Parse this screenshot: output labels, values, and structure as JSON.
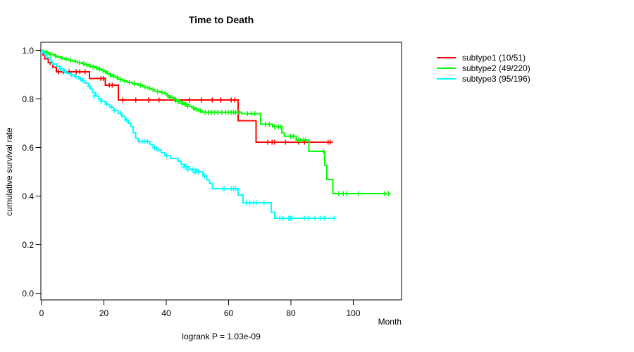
{
  "title": "Time to Death",
  "axes": {
    "y_label": "cumulative survival rate",
    "x_label": "Month"
  },
  "footer": "logrank P = 1.03e-09",
  "legend": {
    "items": [
      {
        "label": "subtype1 (10/51)",
        "color": "#ff0000"
      },
      {
        "label": "subtype2 (49/220)",
        "color": "#00ff00"
      },
      {
        "label": "subtype3 (95/196)",
        "color": "#00ffff"
      }
    ]
  },
  "chart_data": {
    "type": "line",
    "variant": "kaplan-meier-step",
    "title": "Time to Death",
    "xlabel": "Month",
    "ylabel": "cumulative survival rate",
    "xlim": [
      0,
      115.5
    ],
    "ylim": [
      0.0,
      1.0
    ],
    "x_ticks": [
      0,
      20,
      40,
      60,
      80,
      100
    ],
    "y_ticks": [
      "1.0",
      "0.8",
      "0.6",
      "0.4",
      "0.2",
      "0.0"
    ],
    "grid": false,
    "legend_position": "right-outside",
    "annotation": "logrank P = 1.03e-09",
    "series": [
      {
        "name": "subtype1 (10/51)",
        "color": "#ff0000",
        "end": 93.4,
        "steps": [
          [
            0,
            1.0
          ],
          [
            0.4,
            0.981
          ],
          [
            1.0,
            0.965
          ],
          [
            2.2,
            0.95
          ],
          [
            3.6,
            0.931
          ],
          [
            4.8,
            0.912
          ],
          [
            15.4,
            0.884
          ],
          [
            20.5,
            0.856
          ],
          [
            24.6,
            0.795
          ],
          [
            63.1,
            0.71
          ],
          [
            68.8,
            0.622
          ]
        ],
        "censors": [
          [
            2.8,
            0.95
          ],
          [
            5.5,
            0.912
          ],
          [
            7.0,
            0.912
          ],
          [
            8.9,
            0.912
          ],
          [
            11.1,
            0.912
          ],
          [
            12.3,
            0.912
          ],
          [
            13.9,
            0.912
          ],
          [
            19.0,
            0.884
          ],
          [
            19.8,
            0.884
          ],
          [
            21.8,
            0.856
          ],
          [
            22.7,
            0.856
          ],
          [
            26.0,
            0.795
          ],
          [
            30.2,
            0.795
          ],
          [
            34.3,
            0.795
          ],
          [
            37.7,
            0.795
          ],
          [
            43.0,
            0.795
          ],
          [
            47.5,
            0.795
          ],
          [
            51.4,
            0.795
          ],
          [
            54.8,
            0.795
          ],
          [
            57.5,
            0.795
          ],
          [
            60.9,
            0.795
          ],
          [
            62.0,
            0.795
          ],
          [
            72.6,
            0.622
          ],
          [
            74.0,
            0.622
          ],
          [
            74.8,
            0.622
          ],
          [
            78.2,
            0.622
          ],
          [
            82.4,
            0.622
          ],
          [
            84.3,
            0.622
          ],
          [
            91.9,
            0.622
          ],
          [
            92.6,
            0.622
          ]
        ]
      },
      {
        "name": "subtype2 (49/220)",
        "color": "#00ff00",
        "end": 111.8,
        "steps": [
          [
            0,
            1.0
          ],
          [
            0.7,
            0.995
          ],
          [
            1.5,
            0.991
          ],
          [
            2.3,
            0.986
          ],
          [
            3.2,
            0.982
          ],
          [
            4.1,
            0.977
          ],
          [
            5.0,
            0.973
          ],
          [
            6.1,
            0.968
          ],
          [
            7.2,
            0.964
          ],
          [
            8.5,
            0.959
          ],
          [
            10.0,
            0.955
          ],
          [
            11.5,
            0.95
          ],
          [
            13.0,
            0.945
          ],
          [
            14.0,
            0.941
          ],
          [
            15.0,
            0.936
          ],
          [
            16.0,
            0.932
          ],
          [
            17.2,
            0.927
          ],
          [
            18.2,
            0.923
          ],
          [
            19.2,
            0.918
          ],
          [
            20.3,
            0.912
          ],
          [
            21.0,
            0.905
          ],
          [
            21.8,
            0.899
          ],
          [
            22.6,
            0.894
          ],
          [
            23.6,
            0.889
          ],
          [
            24.8,
            0.879
          ],
          [
            26.0,
            0.874
          ],
          [
            27.5,
            0.868
          ],
          [
            29.0,
            0.862
          ],
          [
            31.0,
            0.856
          ],
          [
            32.5,
            0.85
          ],
          [
            34.0,
            0.843
          ],
          [
            35.2,
            0.837
          ],
          [
            36.5,
            0.831
          ],
          [
            38.0,
            0.827
          ],
          [
            39.3,
            0.822
          ],
          [
            40.3,
            0.813
          ],
          [
            41.3,
            0.806
          ],
          [
            42.3,
            0.8
          ],
          [
            43.3,
            0.794
          ],
          [
            44.3,
            0.788
          ],
          [
            45.3,
            0.782
          ],
          [
            46.3,
            0.777
          ],
          [
            47.3,
            0.77
          ],
          [
            48.2,
            0.763
          ],
          [
            49.2,
            0.757
          ],
          [
            50.3,
            0.751
          ],
          [
            51.5,
            0.745
          ],
          [
            64.2,
            0.739
          ],
          [
            70.3,
            0.695
          ],
          [
            74.1,
            0.686
          ],
          [
            77.1,
            0.661
          ],
          [
            77.9,
            0.647
          ],
          [
            81.7,
            0.63
          ],
          [
            85.8,
            0.584
          ],
          [
            90.8,
            0.526
          ],
          [
            91.5,
            0.468
          ],
          [
            93.5,
            0.41
          ]
        ],
        "censors": [
          [
            1.8,
            0.991
          ],
          [
            3.0,
            0.982
          ],
          [
            4.5,
            0.977
          ],
          [
            6.5,
            0.968
          ],
          [
            7.8,
            0.964
          ],
          [
            9.2,
            0.959
          ],
          [
            10.8,
            0.955
          ],
          [
            12.2,
            0.95
          ],
          [
            13.5,
            0.945
          ],
          [
            14.5,
            0.941
          ],
          [
            15.5,
            0.936
          ],
          [
            16.5,
            0.932
          ],
          [
            17.6,
            0.927
          ],
          [
            18.6,
            0.923
          ],
          [
            19.7,
            0.918
          ],
          [
            20.6,
            0.912
          ],
          [
            22.1,
            0.899
          ],
          [
            23.1,
            0.894
          ],
          [
            24.2,
            0.889
          ],
          [
            25.4,
            0.879
          ],
          [
            26.7,
            0.874
          ],
          [
            28.2,
            0.868
          ],
          [
            29.8,
            0.862
          ],
          [
            31.7,
            0.856
          ],
          [
            33.2,
            0.85
          ],
          [
            34.6,
            0.843
          ],
          [
            35.8,
            0.837
          ],
          [
            37.2,
            0.831
          ],
          [
            38.6,
            0.827
          ],
          [
            39.8,
            0.822
          ],
          [
            41.0,
            0.806
          ],
          [
            42.8,
            0.8
          ],
          [
            44.0,
            0.788
          ],
          [
            45.0,
            0.782
          ],
          [
            46.0,
            0.777
          ],
          [
            46.8,
            0.77
          ],
          [
            48.8,
            0.763
          ],
          [
            49.8,
            0.757
          ],
          [
            51.0,
            0.751
          ],
          [
            52.5,
            0.745
          ],
          [
            53.5,
            0.745
          ],
          [
            54.5,
            0.745
          ],
          [
            55.5,
            0.745
          ],
          [
            56.5,
            0.745
          ],
          [
            57.8,
            0.745
          ],
          [
            59.0,
            0.745
          ],
          [
            59.8,
            0.745
          ],
          [
            60.8,
            0.745
          ],
          [
            61.5,
            0.745
          ],
          [
            62.2,
            0.745
          ],
          [
            63.0,
            0.745
          ],
          [
            63.6,
            0.745
          ],
          [
            66.1,
            0.739
          ],
          [
            67.3,
            0.739
          ],
          [
            68.4,
            0.739
          ],
          [
            71.8,
            0.695
          ],
          [
            73.0,
            0.695
          ],
          [
            74.8,
            0.686
          ],
          [
            76.0,
            0.686
          ],
          [
            76.8,
            0.686
          ],
          [
            79.8,
            0.647
          ],
          [
            80.3,
            0.647
          ],
          [
            80.8,
            0.647
          ],
          [
            82.3,
            0.63
          ],
          [
            83.2,
            0.63
          ],
          [
            84.0,
            0.63
          ],
          [
            84.7,
            0.63
          ],
          [
            90.4,
            0.584
          ],
          [
            95.3,
            0.41
          ],
          [
            96.8,
            0.41
          ],
          [
            97.8,
            0.41
          ],
          [
            101.8,
            0.41
          ],
          [
            110.1,
            0.41
          ],
          [
            111.2,
            0.41
          ]
        ]
      },
      {
        "name": "subtype3 (95/196)",
        "color": "#00ffff",
        "end": 93.8,
        "steps": [
          [
            0,
            1.0
          ],
          [
            0.5,
            0.99
          ],
          [
            0.9,
            0.983
          ],
          [
            1.7,
            0.969
          ],
          [
            2.8,
            0.954
          ],
          [
            3.6,
            0.944
          ],
          [
            4.7,
            0.935
          ],
          [
            5.8,
            0.925
          ],
          [
            7.0,
            0.915
          ],
          [
            8.1,
            0.906
          ],
          [
            9.3,
            0.898
          ],
          [
            10.6,
            0.891
          ],
          [
            12.0,
            0.883
          ],
          [
            13.0,
            0.874
          ],
          [
            14.0,
            0.865
          ],
          [
            15.0,
            0.852
          ],
          [
            15.6,
            0.84
          ],
          [
            16.4,
            0.826
          ],
          [
            17.4,
            0.812
          ],
          [
            18.3,
            0.8
          ],
          [
            19.3,
            0.79
          ],
          [
            20.5,
            0.778
          ],
          [
            21.8,
            0.766
          ],
          [
            23.0,
            0.752
          ],
          [
            24.5,
            0.74
          ],
          [
            25.8,
            0.728
          ],
          [
            26.8,
            0.713
          ],
          [
            27.8,
            0.7
          ],
          [
            28.6,
            0.685
          ],
          [
            29.4,
            0.661
          ],
          [
            30.2,
            0.638
          ],
          [
            31.0,
            0.625
          ],
          [
            34.8,
            0.612
          ],
          [
            35.8,
            0.6
          ],
          [
            36.8,
            0.59
          ],
          [
            38.4,
            0.578
          ],
          [
            39.6,
            0.566
          ],
          [
            41.3,
            0.555
          ],
          [
            43.8,
            0.543
          ],
          [
            44.8,
            0.53
          ],
          [
            46.0,
            0.52
          ],
          [
            47.5,
            0.51
          ],
          [
            49.8,
            0.5
          ],
          [
            51.7,
            0.483
          ],
          [
            53.0,
            0.466
          ],
          [
            53.9,
            0.452
          ],
          [
            54.8,
            0.43
          ],
          [
            63.1,
            0.405
          ],
          [
            64.6,
            0.372
          ],
          [
            73.7,
            0.333
          ],
          [
            74.8,
            0.309
          ]
        ],
        "censors": [
          [
            6.2,
            0.925
          ],
          [
            7.4,
            0.915
          ],
          [
            9.7,
            0.898
          ],
          [
            11.0,
            0.891
          ],
          [
            12.5,
            0.883
          ],
          [
            13.4,
            0.874
          ],
          [
            15.3,
            0.852
          ],
          [
            17.0,
            0.812
          ],
          [
            19.0,
            0.79
          ],
          [
            21.0,
            0.778
          ],
          [
            22.4,
            0.766
          ],
          [
            23.5,
            0.752
          ],
          [
            25.2,
            0.74
          ],
          [
            27.2,
            0.713
          ],
          [
            31.5,
            0.625
          ],
          [
            32.3,
            0.625
          ],
          [
            33.2,
            0.625
          ],
          [
            33.9,
            0.625
          ],
          [
            36.2,
            0.6
          ],
          [
            37.3,
            0.59
          ],
          [
            40.2,
            0.566
          ],
          [
            45.7,
            0.52
          ],
          [
            46.4,
            0.52
          ],
          [
            47.0,
            0.51
          ],
          [
            48.3,
            0.51
          ],
          [
            48.9,
            0.5
          ],
          [
            49.4,
            0.5
          ],
          [
            50.3,
            0.5
          ],
          [
            52.3,
            0.483
          ],
          [
            58.2,
            0.43
          ],
          [
            58.8,
            0.43
          ],
          [
            60.8,
            0.43
          ],
          [
            61.6,
            0.43
          ],
          [
            62.3,
            0.43
          ],
          [
            65.7,
            0.372
          ],
          [
            66.8,
            0.372
          ],
          [
            68.0,
            0.372
          ],
          [
            68.9,
            0.372
          ],
          [
            71.4,
            0.372
          ],
          [
            76.4,
            0.309
          ],
          [
            77.5,
            0.309
          ],
          [
            79.3,
            0.309
          ],
          [
            79.8,
            0.309
          ],
          [
            80.2,
            0.309
          ],
          [
            84.3,
            0.309
          ],
          [
            85.5,
            0.309
          ],
          [
            87.7,
            0.309
          ],
          [
            89.5,
            0.309
          ],
          [
            90.7,
            0.309
          ],
          [
            93.8,
            0.309
          ]
        ]
      }
    ]
  }
}
